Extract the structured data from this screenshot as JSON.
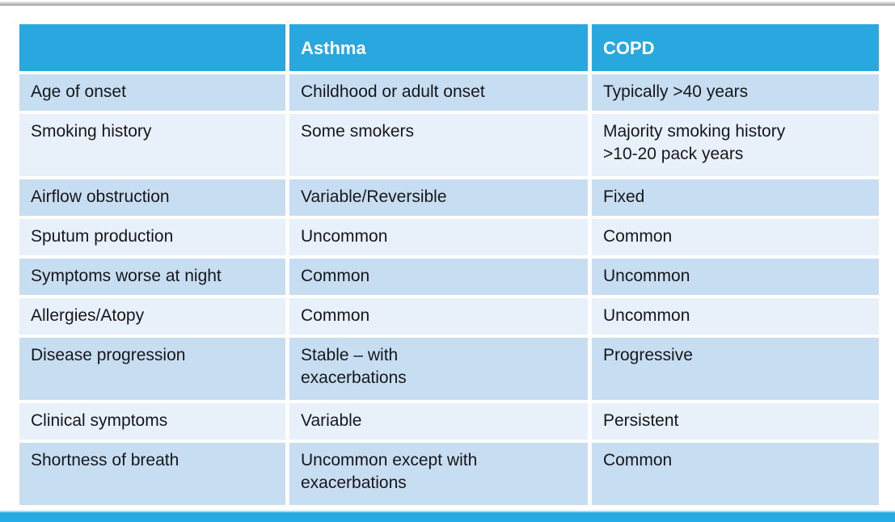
{
  "colors": {
    "header_bg": "#29a8df",
    "header_text": "#ffffff",
    "row_dark": "#c7ddf1",
    "row_light": "#e8f0f9",
    "footer_bar": "#25abe2",
    "body_text": "#17171b",
    "top_edge": "#9e9e9e"
  },
  "table": {
    "columns": [
      "",
      "Asthma",
      "COPD"
    ],
    "rows": [
      [
        "Age of onset",
        "Childhood or adult onset",
        "Typically >40 years"
      ],
      [
        "Smoking history",
        "Some smokers",
        "Majority smoking history\n>10-20 pack years"
      ],
      [
        "Airflow obstruction",
        "Variable/Reversible",
        "Fixed"
      ],
      [
        "Sputum production",
        "Uncommon",
        "Common"
      ],
      [
        "Symptoms worse at night",
        "Common",
        "Uncommon"
      ],
      [
        "Allergies/Atopy",
        "Common",
        "Uncommon"
      ],
      [
        "Disease progression",
        "Stable – with\nexacerbations",
        "Progressive"
      ],
      [
        "Clinical symptoms",
        "Variable",
        "Persistent"
      ],
      [
        "Shortness of breath",
        "Uncommon except with\nexacerbations",
        "Common"
      ]
    ]
  }
}
